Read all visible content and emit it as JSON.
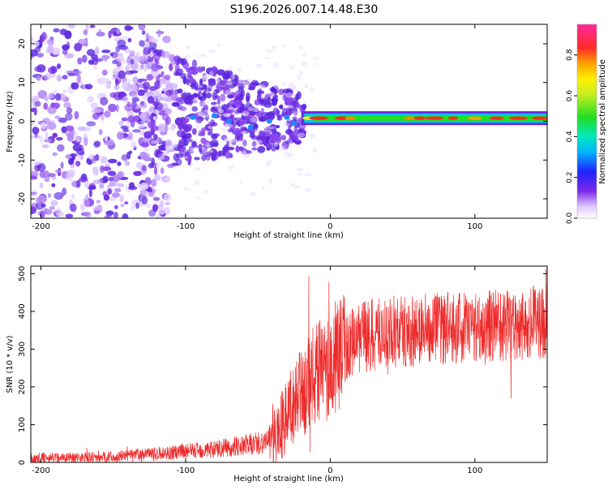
{
  "title": "S196.2026.007.14.48.E30",
  "colors": {
    "snr_line": "#ee2a2a",
    "axis": "#000000",
    "spectrogram_ridge": "#e8222a",
    "spectrogram_purple": "#6a2be0"
  },
  "chart_data": [
    {
      "type": "heatmap",
      "panel": "top",
      "xlabel": "Height of straight line (km)",
      "ylabel": "Frequency (Hz)",
      "xlim": [
        -207,
        150
      ],
      "ylim": [
        -25,
        25
      ],
      "xticks": [
        -200,
        -100,
        0,
        100
      ],
      "yticks": [
        -20,
        -10,
        0,
        10,
        20
      ],
      "colorbar": {
        "label": "Normalized spectral amplitude",
        "range": [
          0.0,
          0.95
        ],
        "ticks": [
          0.0,
          0.2,
          0.4,
          0.6,
          0.8
        ],
        "colormap": "rainbow (violet to red to magenta)"
      },
      "features": [
        {
          "name": "broadband noise",
          "x_range": [
            -207,
            -130
          ],
          "freq_range": [
            -25,
            25
          ],
          "amplitude": 0.05
        },
        {
          "name": "narrowing noise cone",
          "x_range": [
            -130,
            -20
          ],
          "freq_range": [
            -12,
            15
          ],
          "amplitude": 0.08
        },
        {
          "name": "signal ridge",
          "x_range": [
            -20,
            150
          ],
          "frequency": 0.8,
          "amplitude_peak": 0.9
        }
      ]
    },
    {
      "type": "line",
      "panel": "bottom",
      "xlabel": "Height of straight line (km)",
      "ylabel": "SNR (10 * v/v)",
      "xlim": [
        -207,
        150
      ],
      "ylim": [
        0,
        520
      ],
      "xticks": [
        -200,
        -100,
        0,
        100
      ],
      "yticks": [
        0,
        100,
        200,
        300,
        400,
        500
      ],
      "series": [
        {
          "name": "SNR",
          "x": [
            -207,
            -150,
            -120,
            -100,
            -80,
            -60,
            -45,
            -38,
            -30,
            -20,
            -10,
            0,
            10,
            20,
            40,
            60,
            80,
            100,
            120,
            150
          ],
          "values": [
            12,
            15,
            22,
            30,
            35,
            45,
            55,
            75,
            120,
            180,
            230,
            260,
            300,
            330,
            345,
            350,
            355,
            360,
            365,
            375
          ]
        }
      ]
    }
  ]
}
